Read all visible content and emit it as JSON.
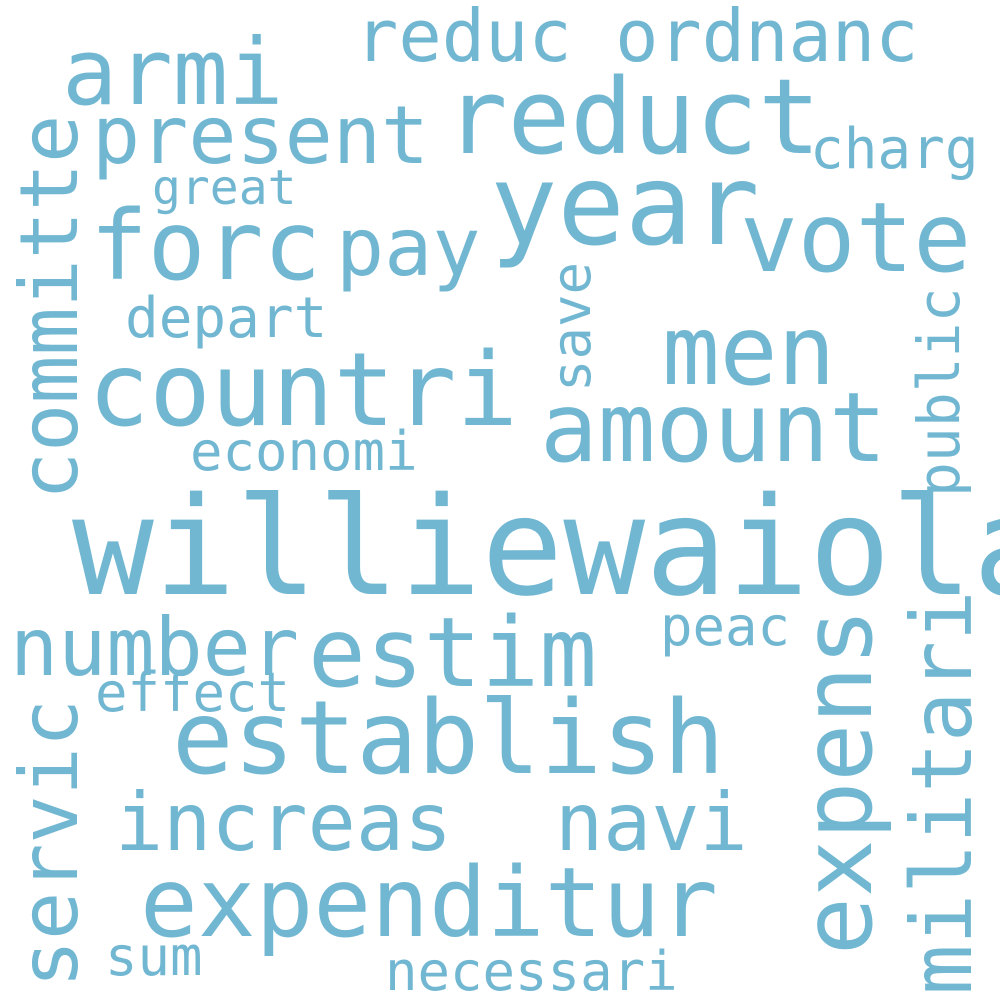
{
  "word_cloud": {
    "color": "#72b7d2",
    "background": "#ffffff",
    "words": {
      "williewaiola": "williewaiola",
      "year": "year",
      "reduct": "reduct",
      "countri": "countri",
      "establish": "establish",
      "expenditur": "expenditur",
      "estim": "estim",
      "armi": "armi",
      "forc": "forc",
      "vote": "vote",
      "men": "men",
      "amount": "amount",
      "present": "present",
      "pay": "pay",
      "number": "number",
      "increas": "increas",
      "navi": "navi",
      "reduc_ordnanc": "reduc ordnanc",
      "charg": "charg",
      "great": "great",
      "depart": "depart",
      "economi": "economi",
      "effect": "effect",
      "peac": "peac",
      "sum": "sum",
      "necessari": "necessari",
      "committe": "committe",
      "servic": "servic",
      "expens": "expens",
      "militari": "militari",
      "save": "save",
      "public": "public"
    }
  }
}
